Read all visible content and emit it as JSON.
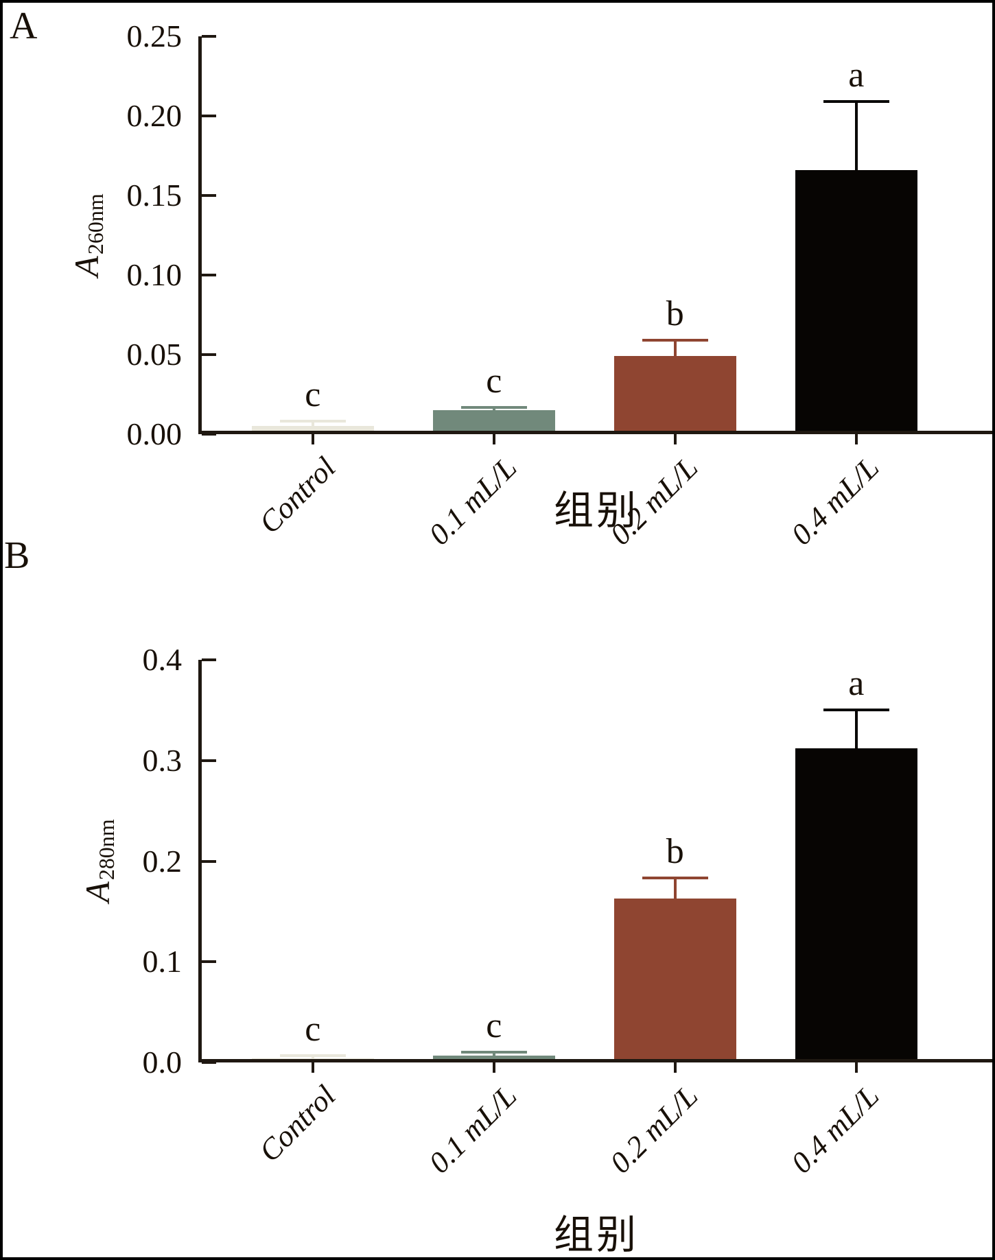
{
  "chart_data": [
    {
      "type": "bar",
      "panel_label": "A",
      "title": "",
      "categories": [
        "Control",
        "0.1 mL/L",
        "0.2 mL/L",
        "0.4 mL/L"
      ],
      "values": [
        0.005,
        0.015,
        0.049,
        0.166
      ],
      "errors": [
        0.003,
        0.002,
        0.01,
        0.043
      ],
      "sig_letters": [
        "c",
        "c",
        "b",
        "a"
      ],
      "bar_colors": [
        "#e9e7db",
        "#71897b",
        "#8f4531",
        "#070503"
      ],
      "ylabel_base": "A",
      "ylabel_sub": "260nm",
      "xlabel": "组别",
      "yticks": [
        "0.00",
        "0.05",
        "0.10",
        "0.15",
        "0.20",
        "0.25"
      ],
      "ylim": [
        0,
        0.25
      ],
      "grid": false,
      "legend": "none"
    },
    {
      "type": "bar",
      "panel_label": "B",
      "title": "",
      "categories": [
        "Control",
        "0.1 mL/L",
        "0.2 mL/L",
        "0.4 mL/L"
      ],
      "values": [
        0.004,
        0.007,
        0.163,
        0.312
      ],
      "errors": [
        0.003,
        0.003,
        0.02,
        0.038
      ],
      "sig_letters": [
        "c",
        "c",
        "b",
        "a"
      ],
      "bar_colors": [
        "#e9e7db",
        "#71897b",
        "#8f4531",
        "#070503"
      ],
      "ylabel_base": "A",
      "ylabel_sub": "280nm",
      "xlabel": "组别",
      "yticks": [
        "0.0",
        "0.1",
        "0.2",
        "0.3",
        "0.4"
      ],
      "ylim": [
        0,
        0.4
      ],
      "grid": false,
      "legend": "none"
    }
  ]
}
